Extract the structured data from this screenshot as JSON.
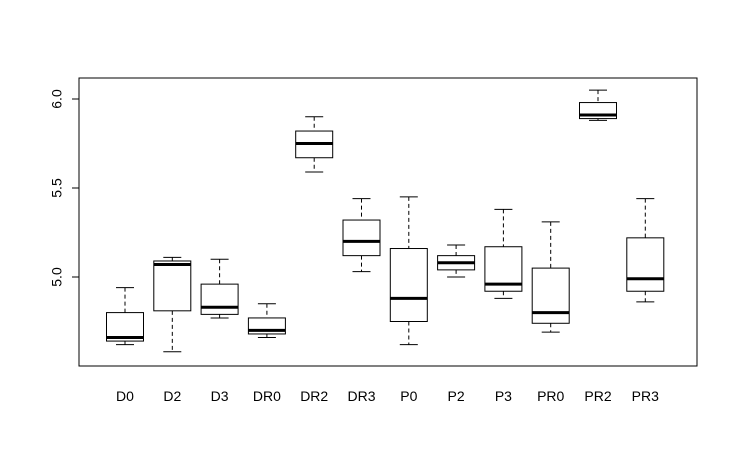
{
  "chart_data": {
    "type": "boxplot",
    "title": "",
    "xlabel": "",
    "ylabel": "",
    "ylim": [
      4.5,
      6.1
    ],
    "yticks": [
      "5.0",
      "5.5",
      "6.0"
    ],
    "grid": false,
    "categories": [
      "D0",
      "D2",
      "D3",
      "DR0",
      "DR2",
      "DR3",
      "P0",
      "P2",
      "P3",
      "PR0",
      "PR2",
      "PR3"
    ],
    "boxes": [
      {
        "label": "D0",
        "min": 4.62,
        "q1": 4.64,
        "median": 4.66,
        "q3": 4.8,
        "max": 4.94
      },
      {
        "label": "D2",
        "min": 4.58,
        "q1": 4.81,
        "median": 5.07,
        "q3": 5.09,
        "max": 5.11
      },
      {
        "label": "D3",
        "min": 4.77,
        "q1": 4.79,
        "median": 4.83,
        "q3": 4.96,
        "max": 5.1
      },
      {
        "label": "DR0",
        "min": 4.66,
        "q1": 4.68,
        "median": 4.7,
        "q3": 4.77,
        "max": 4.85
      },
      {
        "label": "DR2",
        "min": 5.59,
        "q1": 5.67,
        "median": 5.75,
        "q3": 5.82,
        "max": 5.9
      },
      {
        "label": "DR3",
        "min": 5.03,
        "q1": 5.12,
        "median": 5.2,
        "q3": 5.32,
        "max": 5.44
      },
      {
        "label": "P0",
        "min": 4.62,
        "q1": 4.75,
        "median": 4.88,
        "q3": 5.16,
        "max": 5.45
      },
      {
        "label": "P2",
        "min": 5.0,
        "q1": 5.04,
        "median": 5.08,
        "q3": 5.12,
        "max": 5.18
      },
      {
        "label": "P3",
        "min": 4.88,
        "q1": 4.92,
        "median": 4.96,
        "q3": 5.17,
        "max": 5.38
      },
      {
        "label": "PR0",
        "min": 4.69,
        "q1": 4.74,
        "median": 4.8,
        "q3": 5.05,
        "max": 5.31
      },
      {
        "label": "PR2",
        "min": 5.88,
        "q1": 5.89,
        "median": 5.91,
        "q3": 5.98,
        "max": 6.05
      },
      {
        "label": "PR3",
        "min": 4.86,
        "q1": 4.92,
        "median": 4.99,
        "q3": 5.22,
        "max": 5.44
      }
    ]
  }
}
